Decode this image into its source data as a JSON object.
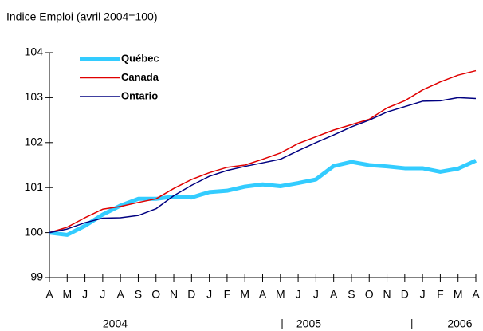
{
  "chart_data": {
    "type": "line",
    "title": "Indice Emploi (avril 2004=100)",
    "categories": [
      "A",
      "M",
      "J",
      "J",
      "A",
      "S",
      "O",
      "N",
      "D",
      "J",
      "F",
      "M",
      "A",
      "M",
      "J",
      "J",
      "A",
      "S",
      "O",
      "N",
      "D",
      "J",
      "F",
      "M",
      "A"
    ],
    "year_labels": [
      "2004",
      "2005",
      "2006"
    ],
    "ylim": [
      99,
      104
    ],
    "yticks": [
      99,
      100,
      101,
      102,
      103,
      104
    ],
    "legend": "upper left",
    "series": [
      {
        "name": "Québec",
        "color": "#33ccff",
        "values": [
          100,
          99.95,
          100.15,
          100.4,
          100.6,
          100.75,
          100.75,
          100.8,
          100.78,
          100.9,
          100.93,
          101.02,
          101.07,
          101.03,
          101.1,
          101.18,
          101.48,
          101.57,
          101.5,
          101.47,
          101.43,
          101.43,
          101.35,
          101.42,
          101.6
        ]
      },
      {
        "name": "Canada",
        "color": "#e00000",
        "values": [
          100,
          100.12,
          100.33,
          100.52,
          100.58,
          100.67,
          100.75,
          100.98,
          101.18,
          101.33,
          101.45,
          101.5,
          101.63,
          101.77,
          101.98,
          102.13,
          102.28,
          102.4,
          102.52,
          102.77,
          102.93,
          103.17,
          103.35,
          103.5,
          103.6
        ]
      },
      {
        "name": "Ontario",
        "color": "#000080",
        "values": [
          100,
          100.08,
          100.22,
          100.32,
          100.33,
          100.38,
          100.53,
          100.82,
          101.05,
          101.25,
          101.38,
          101.47,
          101.55,
          101.63,
          101.82,
          102,
          102.17,
          102.35,
          102.5,
          102.68,
          102.8,
          102.92,
          102.93,
          103,
          102.98
        ]
      }
    ]
  }
}
